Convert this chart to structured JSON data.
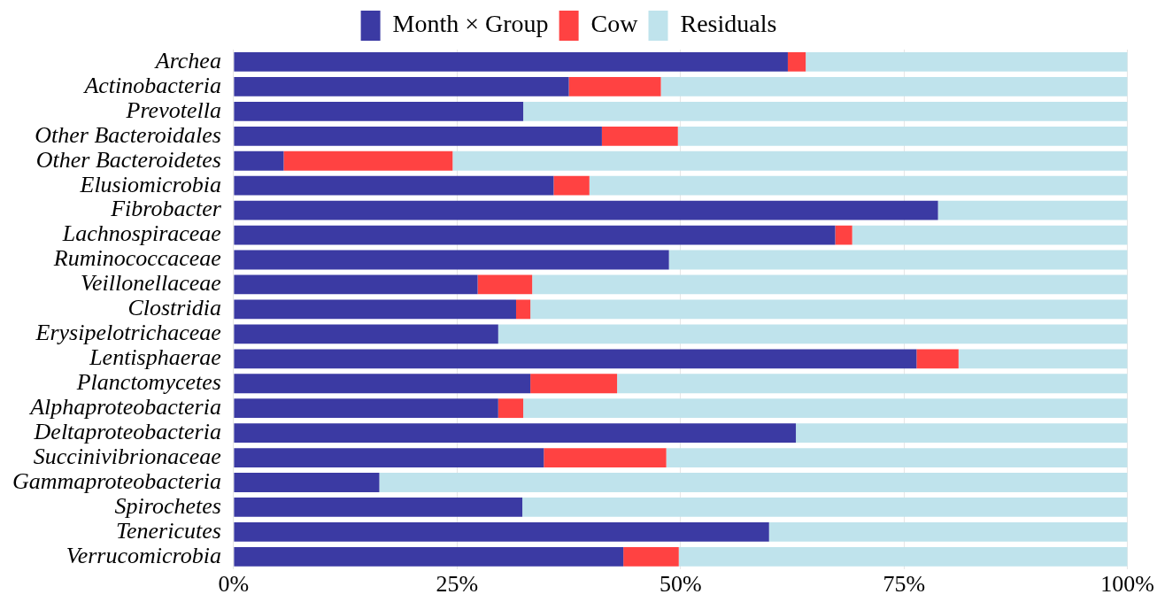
{
  "chart_data": {
    "type": "bar",
    "orientation": "horizontal",
    "stacked": true,
    "categories": [
      "Archea",
      "Actinobacteria",
      "Prevotella",
      "Other Bacteroidales",
      "Other Bacteroidetes",
      "Elusiomicrobia",
      "Fibrobacter",
      "Lachnospiraceae",
      "Ruminococcaceae",
      "Veillonellaceae",
      "Clostridia",
      "Erysipelotrichaceae",
      "Lentisphaerae",
      "Planctomycetes",
      "Alphaproteobacteria",
      "Deltaproteobacteria",
      "Succinivibrionaceae",
      "Gammaproteobacteria",
      "Spirochetes",
      "Tenericutes",
      "Verrucomicrobia"
    ],
    "series": [
      {
        "name": "Month × Group",
        "color": "#3b3aa3",
        "values": [
          62,
          37.5,
          32.4,
          41.2,
          5.6,
          35.8,
          78.8,
          67.3,
          48.7,
          27.3,
          31.6,
          29.6,
          76.4,
          33.2,
          29.6,
          62.9,
          34.7,
          16.3,
          32.3,
          59.9,
          43.6
        ]
      },
      {
        "name": "Cow",
        "color": "#ff4242",
        "values": [
          2,
          10.3,
          0,
          8.5,
          18.9,
          4,
          0,
          1.9,
          0,
          6.1,
          1.6,
          0,
          4.7,
          9.7,
          2.8,
          0,
          13.7,
          0,
          0,
          0,
          6.2
        ]
      },
      {
        "name": "Residuals",
        "color": "#bfe3ec",
        "values": [
          36,
          52.2,
          67.6,
          50.3,
          75.5,
          60.2,
          21.2,
          30.8,
          51.3,
          66.6,
          66.8,
          70.4,
          18.9,
          57.1,
          67.6,
          37.1,
          51.6,
          83.7,
          67.7,
          40.1,
          50.2
        ]
      }
    ],
    "xlim": [
      0,
      100
    ],
    "xticks": [
      {
        "value": 0,
        "label": "0%"
      },
      {
        "value": 25,
        "label": "25%"
      },
      {
        "value": 50,
        "label": "50%"
      },
      {
        "value": 75,
        "label": "75%"
      },
      {
        "value": 100,
        "label": "100%"
      }
    ],
    "grid": "x",
    "legend": "top"
  }
}
